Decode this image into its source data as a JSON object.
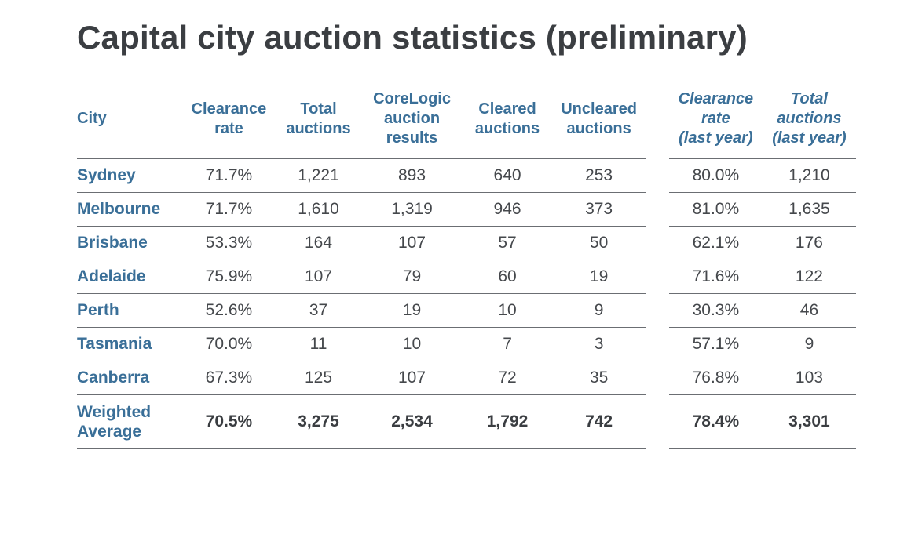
{
  "title": "Capital city auction statistics (preliminary)",
  "table": {
    "type": "table",
    "background_color": "#ffffff",
    "border_color": "#6b6e73",
    "header_color": "#3a6f98",
    "body_text_color": "#45484c",
    "header_fontsize": 20,
    "body_fontsize": 21,
    "columns": [
      {
        "key": "city",
        "label": "City",
        "align": "left",
        "width_pct": 13.5
      },
      {
        "key": "clearance_rate",
        "label": "Clearance rate",
        "align": "center",
        "width_pct": 12
      },
      {
        "key": "total_auctions",
        "label": "Total auctions",
        "align": "center",
        "width_pct": 11
      },
      {
        "key": "corelogic_results",
        "label": "CoreLogic auction results",
        "align": "center",
        "width_pct": 13
      },
      {
        "key": "cleared",
        "label": "Cleared auctions",
        "align": "center",
        "width_pct": 11.5
      },
      {
        "key": "uncleared",
        "label": "Uncleared auctions",
        "align": "center",
        "width_pct": 12
      },
      {
        "key": "clearance_ly",
        "label": "Clearance rate (last year)",
        "align": "center",
        "width_pct": 12,
        "italic": true
      },
      {
        "key": "total_ly",
        "label": "Total auctions (last year)",
        "align": "center",
        "width_pct": 12,
        "italic": true
      }
    ],
    "rows": [
      {
        "city": "Sydney",
        "clearance_rate": "71.7%",
        "total_auctions": "1,221",
        "corelogic_results": "893",
        "cleared": "640",
        "uncleared": "253",
        "clearance_ly": "80.0%",
        "total_ly": "1,210"
      },
      {
        "city": "Melbourne",
        "clearance_rate": "71.7%",
        "total_auctions": "1,610",
        "corelogic_results": "1,319",
        "cleared": "946",
        "uncleared": "373",
        "clearance_ly": "81.0%",
        "total_ly": "1,635"
      },
      {
        "city": "Brisbane",
        "clearance_rate": "53.3%",
        "total_auctions": "164",
        "corelogic_results": "107",
        "cleared": "57",
        "uncleared": "50",
        "clearance_ly": "62.1%",
        "total_ly": "176"
      },
      {
        "city": "Adelaide",
        "clearance_rate": "75.9%",
        "total_auctions": "107",
        "corelogic_results": "79",
        "cleared": "60",
        "uncleared": "19",
        "clearance_ly": "71.6%",
        "total_ly": "122"
      },
      {
        "city": "Perth",
        "clearance_rate": "52.6%",
        "total_auctions": "37",
        "corelogic_results": "19",
        "cleared": "10",
        "uncleared": "9",
        "clearance_ly": "30.3%",
        "total_ly": "46"
      },
      {
        "city": "Tasmania",
        "clearance_rate": "70.0%",
        "total_auctions": "11",
        "corelogic_results": "10",
        "cleared": "7",
        "uncleared": "3",
        "clearance_ly": "57.1%",
        "total_ly": "9"
      },
      {
        "city": "Canberra",
        "clearance_rate": "67.3%",
        "total_auctions": "125",
        "corelogic_results": "107",
        "cleared": "72",
        "uncleared": "35",
        "clearance_ly": "76.8%",
        "total_ly": "103"
      }
    ],
    "summary": {
      "label_line1": "Weighted",
      "label_line2": "Average",
      "clearance_rate": "70.5%",
      "total_auctions": "3,275",
      "corelogic_results": "2,534",
      "cleared": "1,792",
      "uncleared": "742",
      "clearance_ly": "78.4%",
      "total_ly": "3,301"
    }
  },
  "header_lines": {
    "clearance_rate": [
      "Clearance",
      "rate"
    ],
    "total_auctions": [
      "Total",
      "auctions"
    ],
    "corelogic_results": [
      "CoreLogic",
      "auction",
      "results"
    ],
    "cleared": [
      "Cleared",
      "auctions"
    ],
    "uncleared": [
      "Uncleared",
      "auctions"
    ],
    "clearance_ly": [
      "Clearance",
      "rate",
      "(last year)"
    ],
    "total_ly": [
      "Total",
      "auctions",
      "(last year)"
    ]
  }
}
